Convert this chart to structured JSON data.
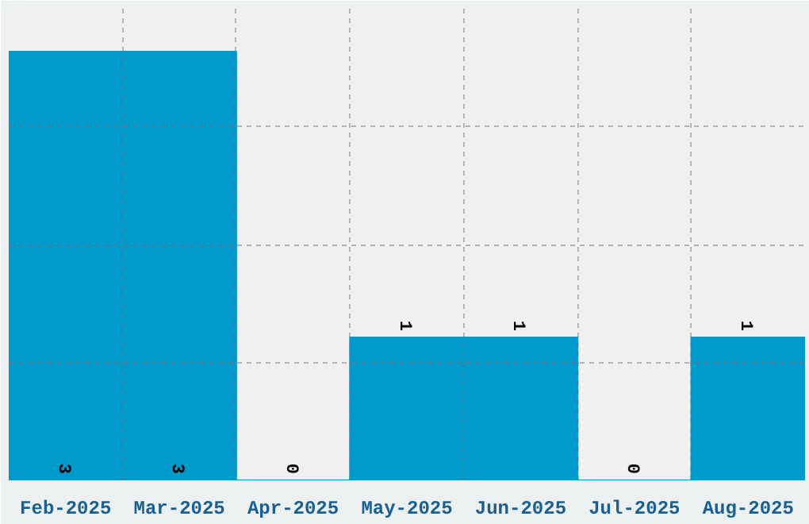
{
  "chart_data": {
    "type": "bar",
    "categories": [
      "Feb-2025",
      "Mar-2025",
      "Apr-2025",
      "May-2025",
      "Jun-2025",
      "Jul-2025",
      "Aug-2025"
    ],
    "values": [
      3,
      3,
      0,
      1,
      1,
      0,
      1
    ],
    "color": "#0099cc",
    "ylim": [
      0,
      3.3
    ],
    "yticks": [
      {
        "value": 0,
        "label": null
      },
      {
        "value": 0.825,
        "label": null
      },
      {
        "value": 1.65,
        "label": null
      },
      {
        "value": 2.475,
        "label": null
      },
      {
        "value": 3.3,
        "label": null
      }
    ],
    "grid": true,
    "tick_labels": "x",
    "data_labels": true
  }
}
